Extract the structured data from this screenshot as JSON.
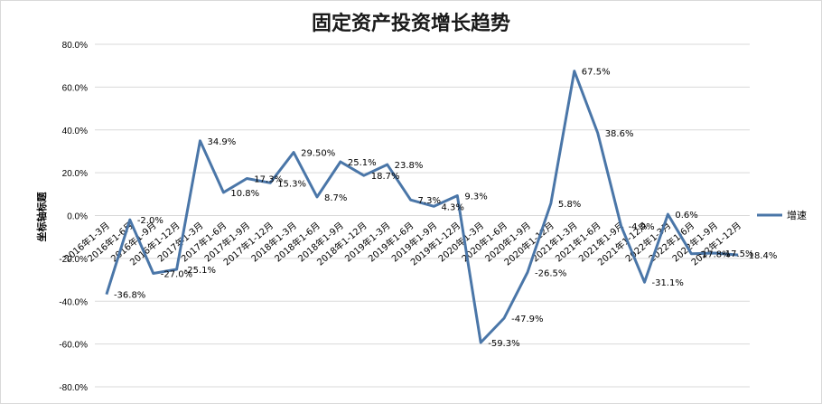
{
  "chart_data": {
    "type": "line",
    "title": "固定资产投资增长趋势",
    "ylabel": "坐标轴标题",
    "xlabel": "",
    "ylim": [
      -80,
      80
    ],
    "ytick_step": 20,
    "ytick_labels": [
      "80.0%",
      "60.0%",
      "40.0%",
      "20.0%",
      "0.0%",
      "-20.0%",
      "-40.0%",
      "-60.0%",
      "-80.0%"
    ],
    "grid": true,
    "legend_position": "right",
    "categories": [
      "2016年1-3月",
      "2016年1-6月",
      "2016年1-9月",
      "2016年1-12月",
      "2017年1-3月",
      "2017年1-6月",
      "2017年1-9月",
      "2017年1-12月",
      "2018年1-3月",
      "2018年1-6月",
      "2018年1-9月",
      "2018年1-12月",
      "2019年1-3月",
      "2019年1-6月",
      "2019年1-9月",
      "2019年1-12月",
      "2020年1-3月",
      "2020年1-6月",
      "2020年1-9月",
      "2020年1-12月",
      "2021年1-3月",
      "2021年1-6月",
      "2021年1-9月",
      "2021年1-12月",
      "2022年1-3月",
      "2022年1-6月",
      "2022年1-9月",
      "2022年1-12月"
    ],
    "series": [
      {
        "name": "增速",
        "color": "#4a76a8",
        "values": [
          -36.8,
          -2.0,
          -27.0,
          -25.1,
          34.9,
          10.8,
          17.3,
          15.3,
          29.5,
          8.7,
          25.1,
          18.7,
          23.8,
          7.3,
          4.3,
          9.3,
          -59.3,
          -47.9,
          -26.5,
          5.8,
          67.5,
          38.6,
          -4.9,
          -31.1,
          0.6,
          -17.8,
          -17.5,
          -18.4
        ],
        "data_labels": [
          "-36.8%",
          "-2.0%",
          "-27.0%",
          "-25.1%",
          "34.9%",
          "10.8%",
          "17.3%",
          "15.3%",
          "29.50%",
          "8.7%",
          "25.1%",
          "18.7%",
          "23.8%",
          "7.3%",
          "4.3%",
          "9.3%",
          "-59.3%",
          "-47.9%",
          "-26.5%",
          "5.8%",
          "67.5%",
          "38.6%",
          "-4.9%",
          "-31.1%",
          "0.6%",
          "-17.8%",
          "-17.5%",
          "-18.4%"
        ]
      }
    ]
  }
}
